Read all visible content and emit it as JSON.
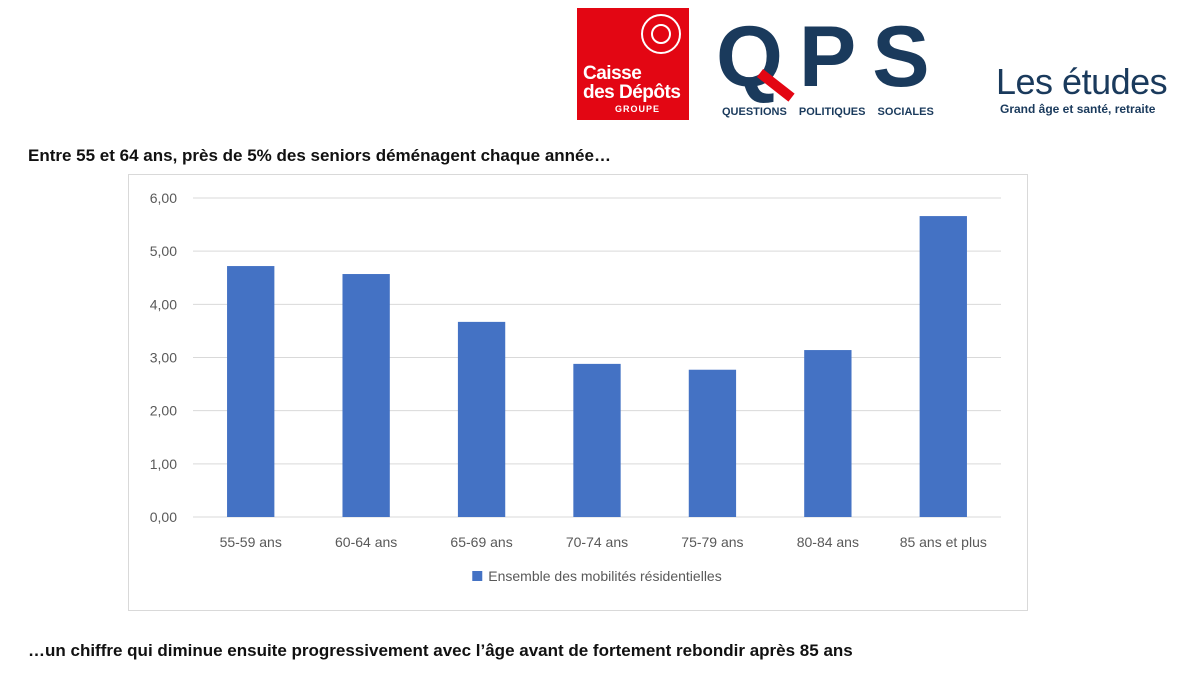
{
  "logos": {
    "cdc": {
      "line1": "Caisse",
      "line2": "des Dépôts",
      "line3": "GROUPE",
      "color": "#e30613"
    },
    "qps": {
      "letters": "QPS",
      "sub1": "QUESTIONS",
      "sub2": "POLITIQUES",
      "sub3": "SOCIALES",
      "color": "#1a3a5c"
    },
    "etudes": {
      "title": "Les études",
      "subtitle": "Grand âge et santé, retraite"
    }
  },
  "headline": "Entre 55 et 64 ans, près de 5% des seniors déménagent chaque année…",
  "footline": "…un chiffre qui diminue ensuite progressivement avec l’âge avant de fortement rebondir après 85 ans",
  "chart_data": {
    "type": "bar",
    "categories": [
      "55-59 ans",
      "60-64 ans",
      "65-69 ans",
      "70-74 ans",
      "75-79 ans",
      "80-84 ans",
      "85 ans et plus"
    ],
    "series": [
      {
        "name": "Ensemble des mobilités résidentielles",
        "values": [
          4.72,
          4.57,
          3.67,
          2.88,
          2.77,
          3.14,
          5.66
        ],
        "color": "#4472c4"
      }
    ],
    "yticks": [
      "0,00",
      "1,00",
      "2,00",
      "3,00",
      "4,00",
      "5,00",
      "6,00"
    ],
    "ylim": [
      0,
      6
    ],
    "grid": true,
    "legend": "bottom"
  }
}
